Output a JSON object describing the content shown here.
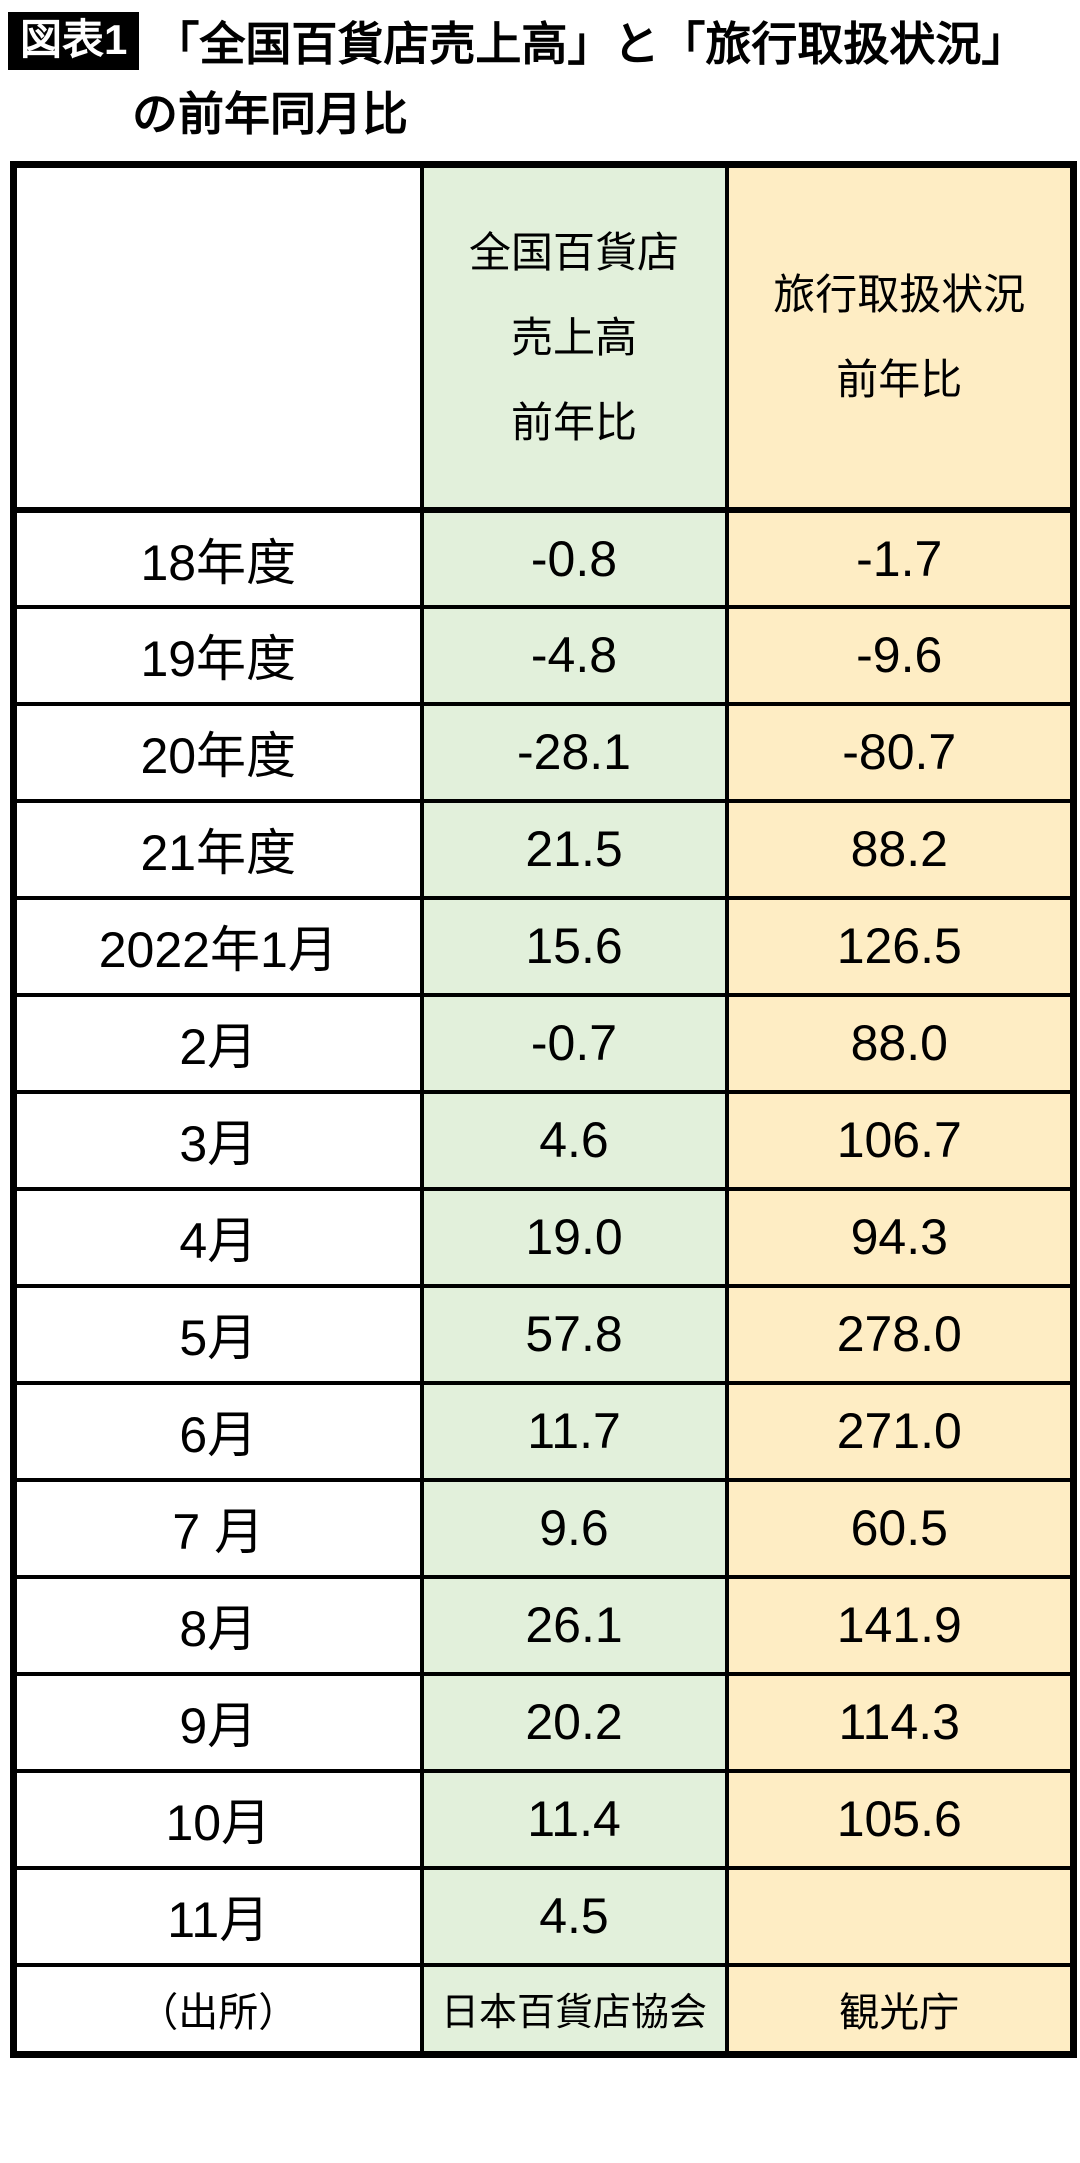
{
  "colors": {
    "dept_bg": "#e2f0db",
    "travel_bg": "#feedc4",
    "border": "#000000",
    "badge_bg": "#000000",
    "badge_fg": "#ffffff"
  },
  "title": {
    "badge": "図表1",
    "line1": "「全国百貨店売上高」と「旅行取扱状況」",
    "line2": "の前年同月比"
  },
  "table": {
    "header": {
      "dept_lines": [
        "全国百貨店",
        "売上高",
        "前年比"
      ],
      "travel_lines": [
        "旅行取扱状況",
        "前年比"
      ]
    },
    "rows": [
      {
        "label": "18年度",
        "dept": "-0.8",
        "travel": "-1.7"
      },
      {
        "label": "19年度",
        "dept": "-4.8",
        "travel": "-9.6"
      },
      {
        "label": "20年度",
        "dept": "-28.1",
        "travel": "-80.7"
      },
      {
        "label": "21年度",
        "dept": "21.5",
        "travel": "88.2"
      },
      {
        "label": "2022年1月",
        "dept": "15.6",
        "travel": "126.5"
      },
      {
        "label": "2月",
        "dept": "-0.7",
        "travel": "88.0"
      },
      {
        "label": "3月",
        "dept": "4.6",
        "travel": "106.7"
      },
      {
        "label": "4月",
        "dept": "19.0",
        "travel": "94.3"
      },
      {
        "label": "5月",
        "dept": "57.8",
        "travel": "278.0"
      },
      {
        "label": "6月",
        "dept": "11.7",
        "travel": "271.0"
      },
      {
        "label": "7 月",
        "dept": "9.6",
        "travel": "60.5"
      },
      {
        "label": "8月",
        "dept": "26.1",
        "travel": "141.9"
      },
      {
        "label": "9月",
        "dept": "20.2",
        "travel": "114.3"
      },
      {
        "label": "10月",
        "dept": "11.4",
        "travel": "105.6"
      },
      {
        "label": "11月",
        "dept": "4.5",
        "travel": ""
      },
      {
        "label": "（出所）",
        "dept": "日本百貨店協会",
        "travel": "観光庁",
        "source": true
      }
    ]
  },
  "chart_data": {
    "type": "table",
    "title": "図表1「全国百貨店売上高」と「旅行取扱状況」の前年同月比",
    "columns": [
      "",
      "全国百貨店売上高前年比",
      "旅行取扱状況前年比"
    ],
    "categories": [
      "18年度",
      "19年度",
      "20年度",
      "21年度",
      "2022年1月",
      "2月",
      "3月",
      "4月",
      "5月",
      "6月",
      "7月",
      "8月",
      "9月",
      "10月",
      "11月"
    ],
    "series": [
      {
        "name": "全国百貨店売上高前年比",
        "source": "日本百貨店協会",
        "values": [
          -0.8,
          -4.8,
          -28.1,
          21.5,
          15.6,
          -0.7,
          4.6,
          19.0,
          57.8,
          11.7,
          9.6,
          26.1,
          20.2,
          11.4,
          4.5
        ]
      },
      {
        "name": "旅行取扱状況前年比",
        "source": "観光庁",
        "values": [
          -1.7,
          -9.6,
          -80.7,
          88.2,
          126.5,
          88.0,
          106.7,
          94.3,
          278.0,
          271.0,
          60.5,
          141.9,
          114.3,
          105.6,
          null
        ]
      }
    ]
  }
}
